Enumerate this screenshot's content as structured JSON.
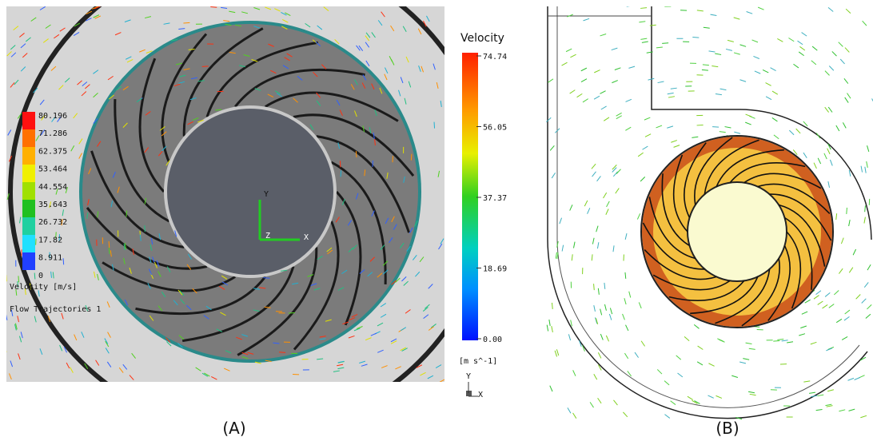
{
  "panel_a": {
    "legend": {
      "ticks": [
        "80.196",
        "71.286",
        "62.375",
        "53.464",
        "44.554",
        "35.643",
        "26.732",
        "17.82",
        "8.911",
        "0"
      ],
      "title": "Velocity [m/s]"
    },
    "trajectory_label": "Flow Trajectories 1",
    "axes": {
      "y": "Y",
      "z": "Z",
      "x": "X"
    },
    "caption": "(A)"
  },
  "panel_b": {
    "legend": {
      "title": "Velocity",
      "ticks": [
        "74.74",
        "56.05",
        "37.37",
        "18.69",
        "0.00"
      ],
      "unit": "[m s^-1]"
    },
    "axes": {
      "y": "Y",
      "x": "X"
    },
    "caption": "(B)"
  }
}
